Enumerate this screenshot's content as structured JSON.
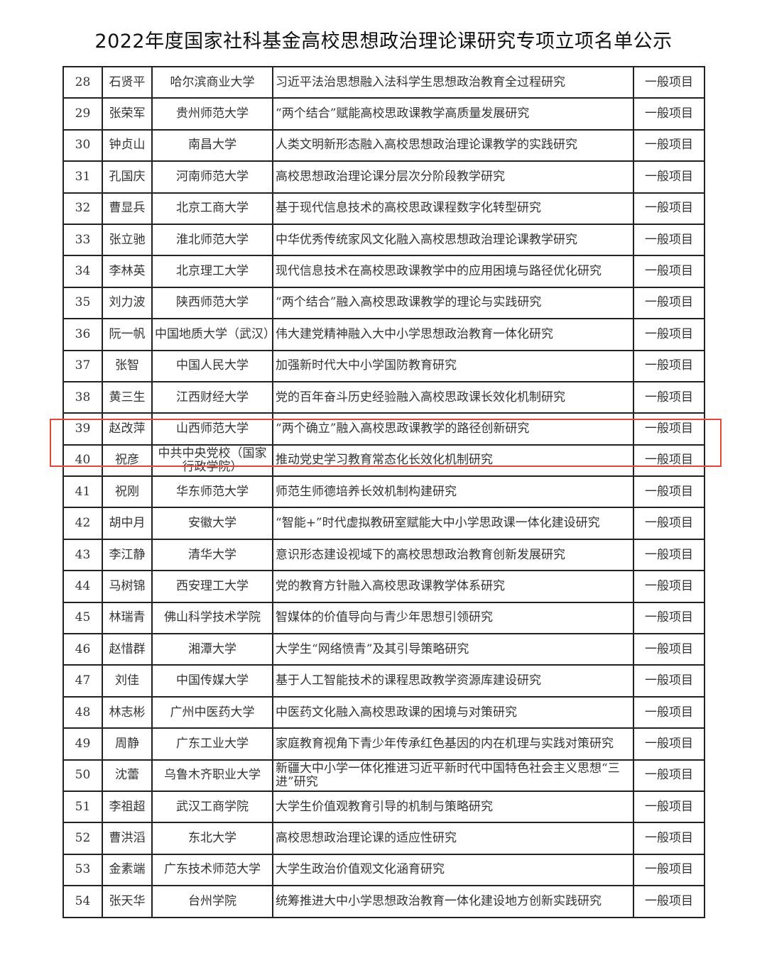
{
  "title": "2022年度国家社科基金高校思想政治理论课研究专项立项名单公示",
  "highlight_color": "#e0463e",
  "highlighted_row": "39",
  "rows": [
    {
      "no": "28",
      "name": "石贤平",
      "univ": "哈尔滨商业大学",
      "topic": "习近平法治思想融入法科学生思想政治教育全过程研究",
      "type": "一般项目"
    },
    {
      "no": "29",
      "name": "张荣军",
      "univ": "贵州师范大学",
      "topic": "“两个结合”赋能高校思政课教学高质量发展研究",
      "type": "一般项目"
    },
    {
      "no": "30",
      "name": "钟贞山",
      "univ": "南昌大学",
      "topic": "人类文明新形态融入高校思想政治理论课教学的实践研究",
      "type": "一般项目"
    },
    {
      "no": "31",
      "name": "孔国庆",
      "univ": "河南师范大学",
      "topic": "高校思想政治理论课分层次分阶段教学研究",
      "type": "一般项目"
    },
    {
      "no": "32",
      "name": "曹显兵",
      "univ": "北京工商大学",
      "topic": "基于现代信息技术的高校思政课程数字化转型研究",
      "type": "一般项目"
    },
    {
      "no": "33",
      "name": "张立驰",
      "univ": "淮北师范大学",
      "topic": "中华优秀传统家风文化融入高校思想政治理论课教学研究",
      "type": "一般项目"
    },
    {
      "no": "34",
      "name": "李林英",
      "univ": "北京理工大学",
      "topic": "现代信息技术在高校思政课教学中的应用困境与路径优化研究",
      "type": "一般项目"
    },
    {
      "no": "35",
      "name": "刘力波",
      "univ": "陕西师范大学",
      "topic": "“两个结合”融入高校思政课教学的理论与实践研究",
      "type": "一般项目"
    },
    {
      "no": "36",
      "name": "阮一帆",
      "univ": "中国地质大学（武汉）",
      "topic": "伟大建党精神融入大中小学思想政治教育一体化研究",
      "type": "一般项目"
    },
    {
      "no": "37",
      "name": "张智",
      "univ": "中国人民大学",
      "topic": "加强新时代大中小学国防教育研究",
      "type": "一般项目"
    },
    {
      "no": "38",
      "name": "黄三生",
      "univ": "江西财经大学",
      "topic": "党的百年奋斗历史经验融入高校思政课长效化机制研究",
      "type": "一般项目"
    },
    {
      "no": "39",
      "name": "赵改萍",
      "univ": "山西师范大学",
      "topic": "“两个确立”融入高校思政课教学的路径创新研究",
      "type": "一般项目"
    },
    {
      "no": "40",
      "name": "祝彦",
      "univ": "中共中央党校（国家行政学院）",
      "topic": "推动党史学习教育常态化长效化机制研究",
      "type": "一般项目"
    },
    {
      "no": "41",
      "name": "祝刚",
      "univ": "华东师范大学",
      "topic": "师范生师德培养长效机制构建研究",
      "type": "一般项目"
    },
    {
      "no": "42",
      "name": "胡中月",
      "univ": "安徽大学",
      "topic": "“智能+”时代虚拟教研室赋能大中小学思政课一体化建设研究",
      "type": "一般项目"
    },
    {
      "no": "43",
      "name": "李江静",
      "univ": "清华大学",
      "topic": "意识形态建设视域下的高校思想政治教育创新发展研究",
      "type": "一般项目"
    },
    {
      "no": "44",
      "name": "马树锦",
      "univ": "西安理工大学",
      "topic": "党的教育方针融入高校思政课教学体系研究",
      "type": "一般项目"
    },
    {
      "no": "45",
      "name": "林瑞青",
      "univ": "佛山科学技术学院",
      "topic": "智媒体的价值导向与青少年思想引领研究",
      "type": "一般项目"
    },
    {
      "no": "46",
      "name": "赵惜群",
      "univ": "湘潭大学",
      "topic": "大学生“网络愤青”及其引导策略研究",
      "type": "一般项目"
    },
    {
      "no": "47",
      "name": "刘佳",
      "univ": "中国传媒大学",
      "topic": "基于人工智能技术的课程思政教学资源库建设研究",
      "type": "一般项目"
    },
    {
      "no": "48",
      "name": "林志彬",
      "univ": "广州中医药大学",
      "topic": "中医药文化融入高校思政课的困境与对策研究",
      "type": "一般项目"
    },
    {
      "no": "49",
      "name": "周静",
      "univ": "广东工业大学",
      "topic": "家庭教育视角下青少年传承红色基因的内在机理与实践对策研究",
      "type": "一般项目"
    },
    {
      "no": "50",
      "name": "沈蕾",
      "univ": "乌鲁木齐职业大学",
      "topic": "新疆大中小学一体化推进习近平新时代中国特色社会主义思想“三进”研究",
      "type": "一般项目"
    },
    {
      "no": "51",
      "name": "李祖超",
      "univ": "武汉工商学院",
      "topic": "大学生价值观教育引导的机制与策略研究",
      "type": "一般项目"
    },
    {
      "no": "52",
      "name": "曹洪滔",
      "univ": "东北大学",
      "topic": "高校思想政治理论课的适应性研究",
      "type": "一般项目"
    },
    {
      "no": "53",
      "name": "金素端",
      "univ": "广东技术师范大学",
      "topic": "大学生政治价值观文化涵育研究",
      "type": "一般项目"
    },
    {
      "no": "54",
      "name": "张天华",
      "univ": "台州学院",
      "topic": "统筹推进大中小学思想政治教育一体化建设地方创新实践研究",
      "type": "一般项目"
    }
  ]
}
